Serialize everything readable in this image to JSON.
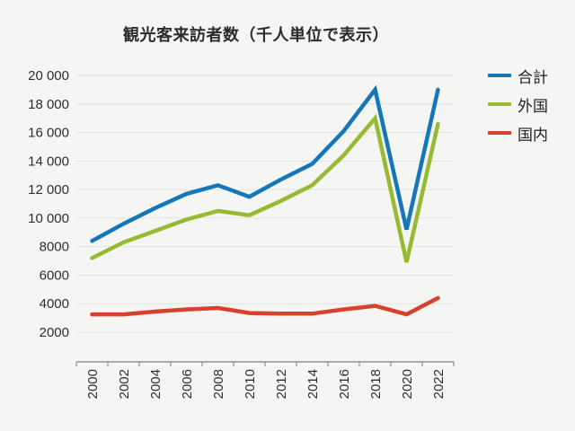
{
  "title": "観光客来訪者数（千人単位で表示）",
  "colors": {
    "background": "#f5f5f3",
    "grid": "#e1e1df",
    "axis": "#7f7f7f",
    "text": "#2e2e2e",
    "title_text": "#2b2b2b"
  },
  "chart_data": {
    "type": "line",
    "title": "観光客来訪者数（千人単位で表示）",
    "xlabel": "",
    "ylabel": "",
    "categories": [
      "2000",
      "2002",
      "2004",
      "2006",
      "2008",
      "2010",
      "2012",
      "2014",
      "2016",
      "2018",
      "2020",
      "2022"
    ],
    "series": [
      {
        "name": "合計",
        "color": "#1577b8",
        "values": [
          8400,
          9600,
          10700,
          11700,
          12300,
          11500,
          12700,
          13800,
          16100,
          19000,
          9200,
          19000
        ]
      },
      {
        "name": "外国",
        "color": "#96bb33",
        "values": [
          7200,
          8300,
          9100,
          9900,
          10500,
          10200,
          11200,
          12300,
          14400,
          17000,
          6900,
          16600
        ]
      },
      {
        "name": "国内",
        "color": "#d8402f",
        "values": [
          3250,
          3250,
          3450,
          3600,
          3700,
          3350,
          3300,
          3300,
          3600,
          3850,
          3250,
          4400
        ]
      }
    ],
    "ylim": [
      2000,
      20000
    ],
    "y_ticks": [
      2000,
      4000,
      6000,
      8000,
      10000,
      12000,
      14000,
      16000,
      18000,
      20000
    ],
    "y_tick_labels": [
      "2000",
      "4000",
      "6000",
      "8000",
      "10 000",
      "12 000",
      "14 000",
      "16 000",
      "18 000",
      "20 000"
    ],
    "x_tick_rotation": -90,
    "grid": true,
    "legend_position": "right",
    "units": "thousands of visitors"
  }
}
